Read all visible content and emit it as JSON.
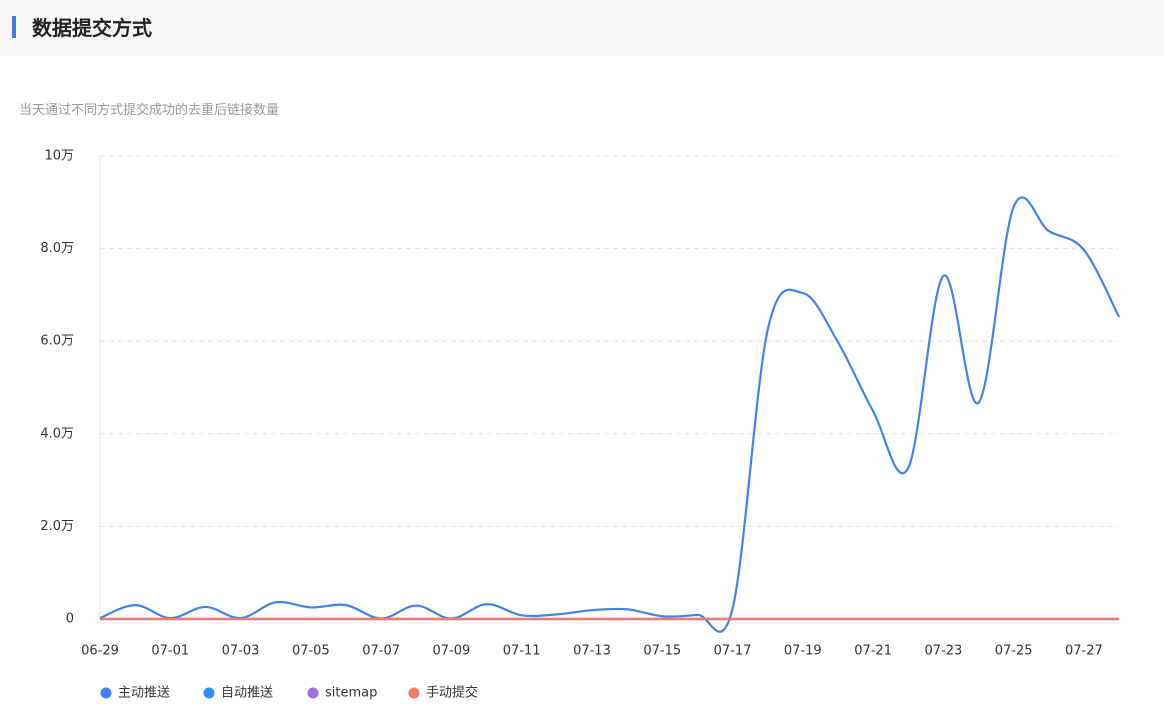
{
  "header": {
    "title": "数据提交方式"
  },
  "chart_data": {
    "type": "line",
    "subtitle": "当天通过不同方式提交成功的去重后链接数量",
    "categories": [
      "06-29",
      null,
      "07-01",
      null,
      "07-03",
      null,
      "07-05",
      null,
      "07-07",
      null,
      "07-09",
      null,
      "07-11",
      null,
      "07-13",
      null,
      "07-15",
      null,
      "07-17",
      null,
      "07-19",
      null,
      "07-21",
      null,
      "07-23",
      null,
      "07-25",
      null,
      "07-27",
      null
    ],
    "ylim": [
      0,
      100000
    ],
    "yticks": [
      0,
      {
        "value": 20000,
        "label": "2.0万"
      },
      {
        "value": 40000,
        "label": "4.0万"
      },
      {
        "value": 60000,
        "label": "6.0万"
      },
      {
        "value": 80000,
        "label": "8.0万"
      },
      {
        "value": 100000,
        "label": "10万"
      }
    ],
    "grid": true,
    "legend": "bottom",
    "series": [
      {
        "name": "主动推送",
        "color": "#3f83ee",
        "values": [
          200,
          3000,
          200,
          2600,
          200,
          3600,
          2500,
          3000,
          100,
          2900,
          100,
          3200,
          800,
          1000,
          1900,
          2100,
          600,
          900,
          2200,
          62400,
          70400,
          59800,
          44900,
          32600,
          74100,
          46700,
          89000,
          83800,
          79700,
          65200
        ]
      },
      {
        "name": "自动推送",
        "color": "#2b8ff5",
        "values": [
          0,
          0,
          0,
          0,
          0,
          0,
          0,
          0,
          0,
          0,
          0,
          0,
          0,
          0,
          0,
          0,
          0,
          0,
          0,
          0,
          0,
          0,
          0,
          0,
          0,
          0,
          0,
          0,
          0,
          0
        ]
      },
      {
        "name": "sitemap",
        "color": "#9a72e0",
        "values": [
          0,
          0,
          0,
          0,
          0,
          0,
          0,
          0,
          0,
          0,
          0,
          0,
          0,
          0,
          0,
          0,
          0,
          0,
          0,
          0,
          0,
          0,
          0,
          0,
          0,
          0,
          0,
          0,
          0,
          0
        ]
      },
      {
        "name": "手动提交",
        "color": "#f27b6b",
        "values": [
          0,
          0,
          0,
          0,
          0,
          0,
          0,
          0,
          0,
          0,
          0,
          0,
          0,
          0,
          0,
          0,
          0,
          0,
          0,
          0,
          0,
          0,
          0,
          0,
          0,
          0,
          0,
          0,
          0,
          0
        ]
      }
    ]
  }
}
